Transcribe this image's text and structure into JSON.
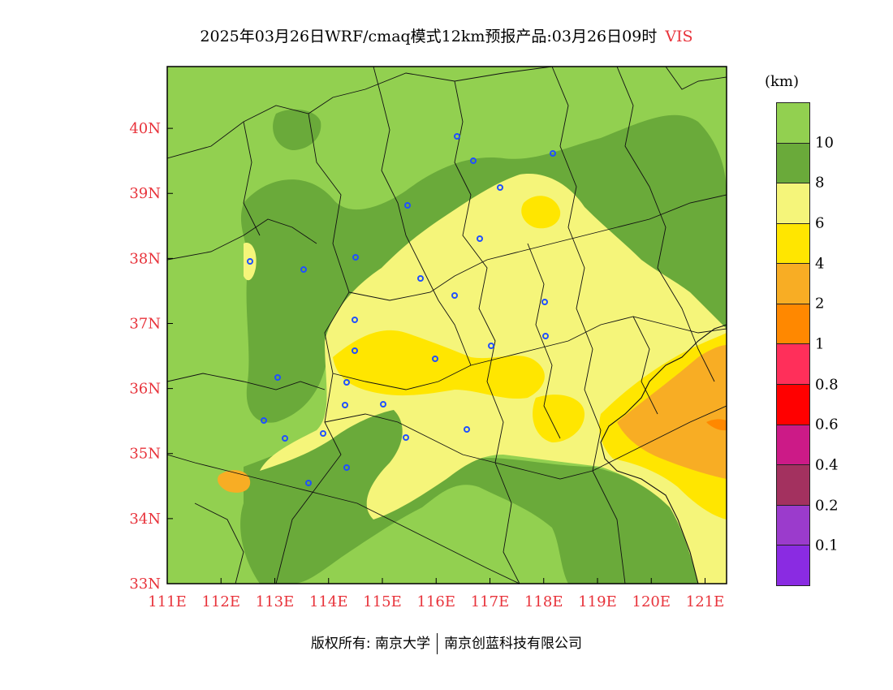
{
  "title": {
    "main": "2025年03月26日WRF/cmaq模式12km预报产品:03月26日09时",
    "variable": "VIS"
  },
  "map": {
    "lat_labels": [
      "40N",
      "39N",
      "38N",
      "37N",
      "36N",
      "35N",
      "34N",
      "33N"
    ],
    "lon_labels": [
      "111E",
      "112E",
      "113E",
      "114E",
      "115E",
      "116E",
      "117E",
      "118E",
      "119E",
      "120E",
      "121E"
    ],
    "lat_range": [
      33,
      40.95
    ],
    "lon_range": [
      111,
      121.4
    ],
    "colors": {
      "gt10": "#92d050",
      "8_10": "#6aaa3a",
      "6_8": "#f5f57a",
      "4_6": "#ffe600",
      "2_4": "#f8ad24",
      "1_2": "#ff8800",
      "city_marker": "#2050ff"
    }
  },
  "legend": {
    "unit": "(km)",
    "labels": [
      "10",
      "8",
      "6",
      "4",
      "2",
      "1",
      "0.8",
      "0.6",
      "0.4",
      "0.2",
      "0.1"
    ],
    "colors": [
      "#92d050",
      "#6aaa3a",
      "#f5f57a",
      "#ffe600",
      "#f8ad24",
      "#ff8800",
      "#ff2f5a",
      "#ff0000",
      "#cc1a87",
      "#a3315f",
      "#9b3bcc",
      "#8a2be2"
    ]
  },
  "footer": {
    "copyright": "版权所有: 南京大学",
    "company": "南京创蓝科技有限公司"
  }
}
